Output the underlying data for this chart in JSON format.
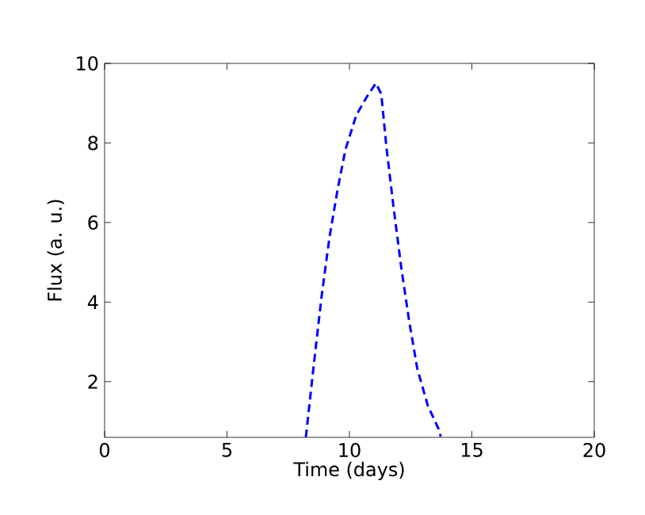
{
  "chart_data": {
    "type": "line",
    "xlabel": "Time (days)",
    "ylabel": "Flux (a. u.)",
    "x": [
      8.22,
      8.55,
      8.87,
      9.19,
      9.52,
      9.84,
      10.28,
      10.71,
      11.08,
      11.3,
      11.51,
      11.79,
      12.12,
      12.44,
      12.77,
      13.2,
      13.7,
      13.72
    ],
    "series": [
      {
        "color": "#0000ff",
        "values": [
          0.6,
          2.46,
          4.18,
          5.65,
          6.84,
          7.84,
          8.7,
          9.16,
          9.5,
          9.23,
          7.9,
          6.44,
          4.85,
          3.52,
          2.33,
          1.4,
          0.73,
          0.62
        ]
      }
    ],
    "xlim": [
      0,
      20
    ],
    "ylim": [
      0.6,
      10
    ],
    "xticks": [
      0,
      5,
      10,
      15,
      20
    ],
    "yticks": [
      2,
      4,
      6,
      8,
      10
    ],
    "line_style": "dashed",
    "marker": "none",
    "grid": false
  }
}
